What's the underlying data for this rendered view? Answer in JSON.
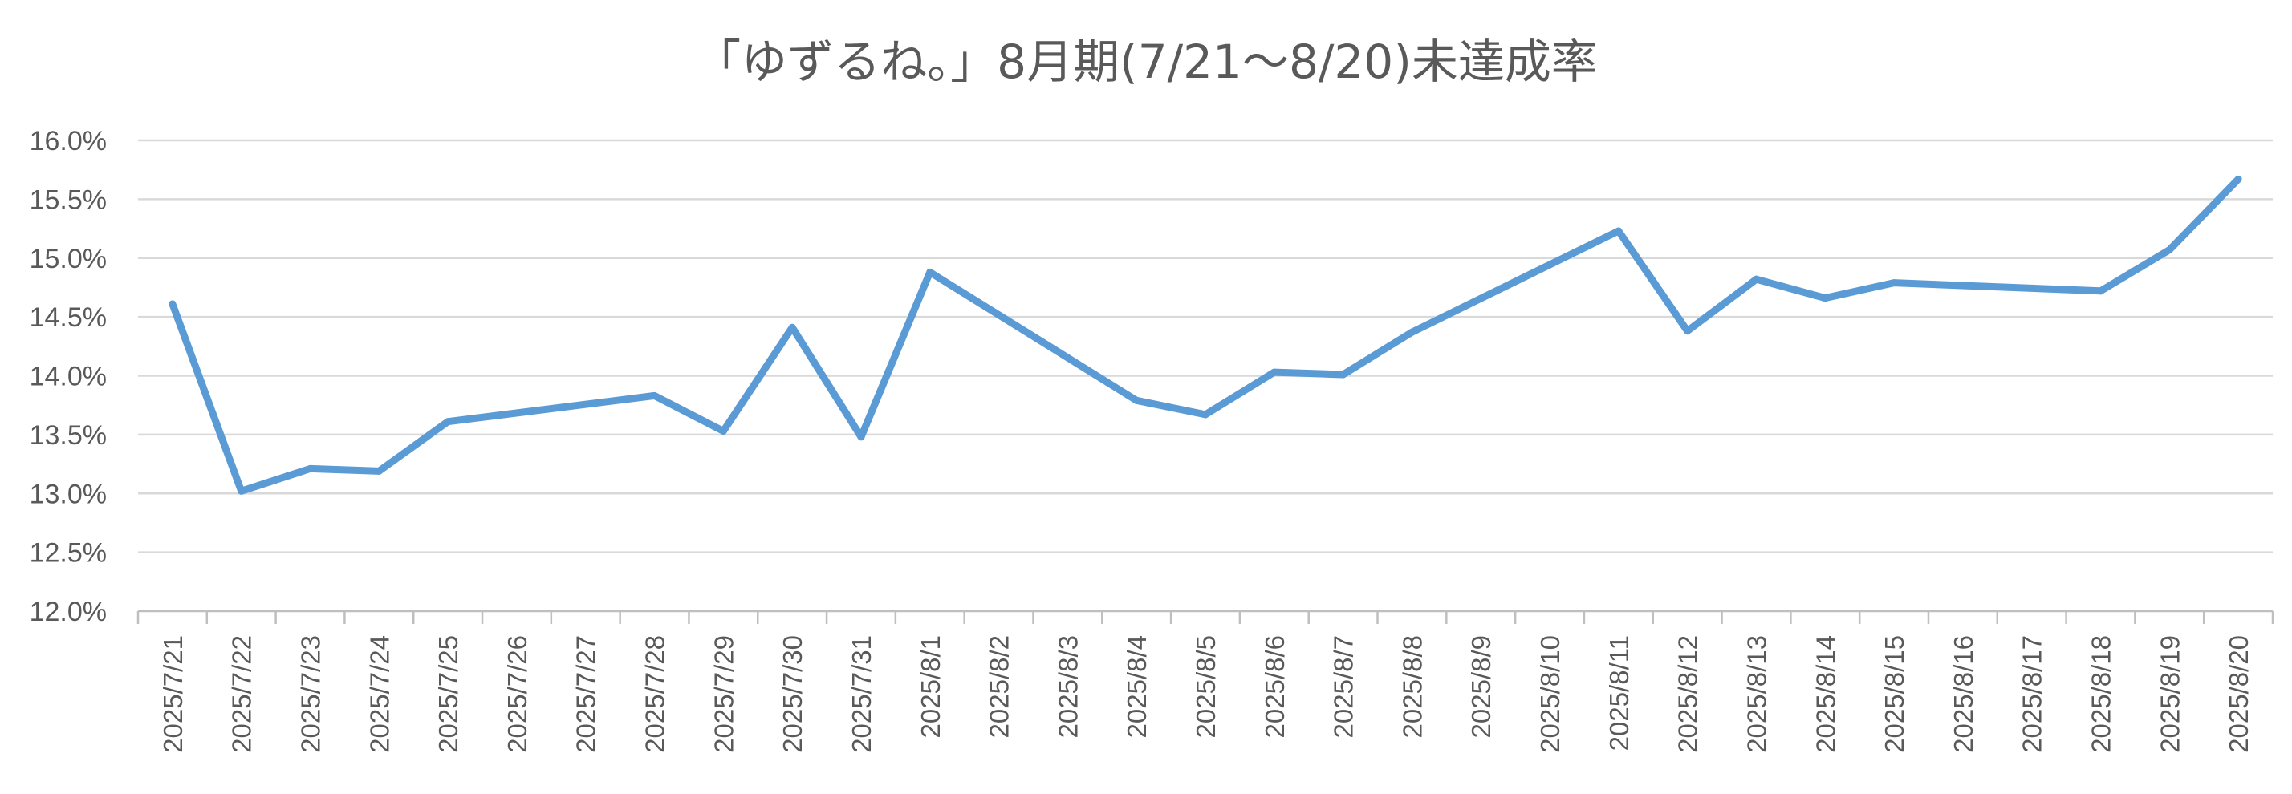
{
  "chart_data": {
    "type": "line",
    "title": "「ゆずるね。」8月期(7/21～8/20)未達成率",
    "xlabel": "",
    "ylabel": "",
    "ylim": [
      0.12,
      0.16
    ],
    "y_ticks": [
      "16.0%",
      "15.5%",
      "15.0%",
      "14.5%",
      "14.0%",
      "13.5%",
      "13.0%",
      "12.5%",
      "12.0%"
    ],
    "y_tick_values": [
      0.16,
      0.155,
      0.15,
      0.145,
      0.14,
      0.135,
      0.13,
      0.125,
      0.12
    ],
    "grid": true,
    "legend": "none",
    "line_color": "#5B9BD5",
    "categories": [
      "2025/7/21",
      "2025/7/22",
      "2025/7/23",
      "2025/7/24",
      "2025/7/25",
      "2025/7/26",
      "2025/7/27",
      "2025/7/28",
      "2025/7/29",
      "2025/7/30",
      "2025/7/31",
      "2025/8/1",
      "2025/8/2",
      "2025/8/3",
      "2025/8/4",
      "2025/8/5",
      "2025/8/6",
      "2025/8/7",
      "2025/8/8",
      "2025/8/9",
      "2025/8/10",
      "2025/8/11",
      "2025/8/12",
      "2025/8/13",
      "2025/8/14",
      "2025/8/15",
      "2025/8/16",
      "2025/8/17",
      "2025/8/18",
      "2025/8/19",
      "2025/8/20"
    ],
    "series": [
      {
        "values": [
          0.1461,
          0.1302,
          0.1321,
          0.1319,
          0.1361,
          null,
          null,
          0.1383,
          0.1353,
          0.1441,
          0.1348,
          0.1488,
          null,
          null,
          0.1379,
          0.1367,
          0.1403,
          0.1401,
          0.1437,
          null,
          null,
          0.1523,
          0.1438,
          0.1482,
          0.1466,
          0.1479,
          null,
          null,
          0.1472,
          0.1507,
          0.1567
        ]
      }
    ]
  }
}
